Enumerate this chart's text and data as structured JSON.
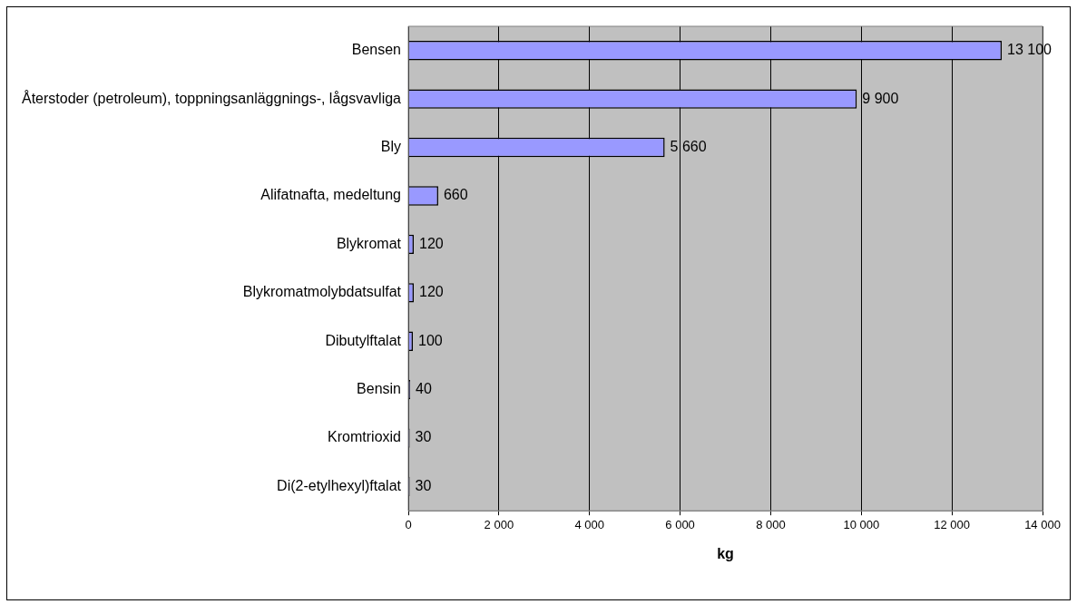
{
  "chart_data": {
    "type": "bar",
    "orientation": "horizontal",
    "xlabel": "kg",
    "categories": [
      "Bensen",
      "Återstoder (petroleum), toppningsanläggnings-, lågsvavliga",
      "Bly",
      "Alifatnafta, medeltung",
      "Blykromat",
      "Blykromatmolybdatsulfat",
      "Dibutylftalat",
      "Bensin",
      "Kromtrioxid",
      "Di(2-etylhexyl)ftalat"
    ],
    "values": [
      13100,
      9900,
      5660,
      660,
      120,
      120,
      100,
      40,
      30,
      30
    ],
    "value_labels": [
      "13 100",
      "9 900",
      "5 660",
      "660",
      "120",
      "120",
      "100",
      "40",
      "30",
      "30"
    ],
    "color": "#9999ff",
    "xlim": [
      0,
      14000
    ],
    "xticks": [
      0,
      {
        "value": 2000,
        "label": "2 000"
      },
      {
        "value": 4000,
        "label": "4 000"
      },
      {
        "value": 6000,
        "label": "6 000"
      },
      {
        "value": 8000,
        "label": "8 000"
      },
      {
        "value": 10000,
        "label": "10 000"
      },
      {
        "value": 12000,
        "label": "12 000"
      },
      {
        "value": 14000,
        "label": "14 000"
      }
    ],
    "grid": "x",
    "legend": false
  }
}
